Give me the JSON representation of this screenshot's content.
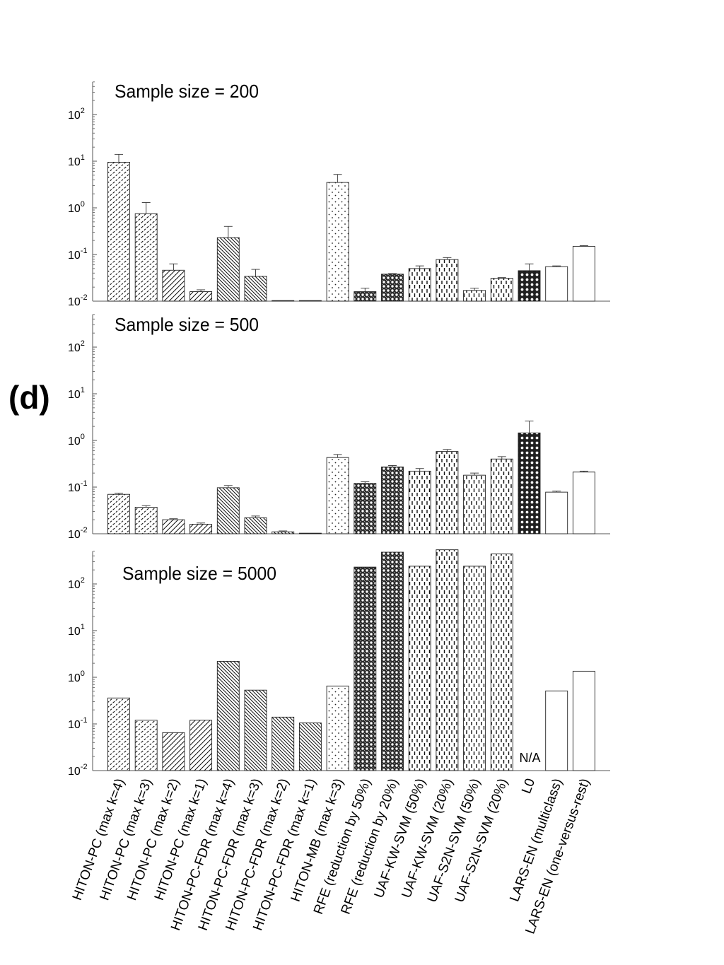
{
  "figure_label": "(d)",
  "colors": {
    "axis": "#555555",
    "bar_stroke": "#222222",
    "ink": "#000000"
  },
  "chart_data": [
    {
      "type": "bar",
      "scale": "log",
      "title": "Sample size = 200",
      "ylim": [
        0.01,
        500
      ],
      "yticks": [
        0.01,
        0.1,
        1,
        10,
        100
      ],
      "categories": [
        "HITON-PC (max k=4)",
        "HITON-PC (max k=3)",
        "HITON-PC (max k=2)",
        "HITON-PC (max k=1)",
        "HITON-PC-FDR (max k=4)",
        "HITON-PC-FDR (max k=3)",
        "HITON-PC-FDR (max k=2)",
        "HITON-PC-FDR (max k=1)",
        "HITON-MB (max k=3)",
        "RFE (reduction by 50%)",
        "RFE (reduction by 20%)",
        "UAF-KW-SVM (50%)",
        "UAF-KW-SVM (20%)",
        "UAF-S2N-SVM (50%)",
        "UAF-S2N-SVM (20%)",
        "L0",
        "LARS-EN (multiclass)",
        "LARS-EN (one-versus-rest)"
      ],
      "values": [
        9.5,
        0.75,
        0.046,
        0.016,
        0.23,
        0.034,
        0.0103,
        0.0103,
        3.5,
        0.016,
        0.038,
        0.05,
        0.078,
        0.017,
        0.031,
        0.045,
        0.055,
        0.15
      ],
      "errors": [
        14,
        1.3,
        0.063,
        0.0175,
        0.4,
        0.048,
        null,
        null,
        5.2,
        0.019,
        0.039,
        0.057,
        0.086,
        0.019,
        0.032,
        0.063,
        0.057,
        0.155
      ]
    },
    {
      "type": "bar",
      "scale": "log",
      "title": "Sample size = 500",
      "ylim": [
        0.01,
        500
      ],
      "yticks": [
        0.01,
        0.1,
        1,
        10,
        100
      ],
      "categories": [
        "HITON-PC (max k=4)",
        "HITON-PC (max k=3)",
        "HITON-PC (max k=2)",
        "HITON-PC (max k=1)",
        "HITON-PC-FDR (max k=4)",
        "HITON-PC-FDR (max k=3)",
        "HITON-PC-FDR (max k=2)",
        "HITON-PC-FDR (max k=1)",
        "HITON-MB (max k=3)",
        "RFE (reduction by 50%)",
        "RFE (reduction by 20%)",
        "UAF-KW-SVM (50%)",
        "UAF-KW-SVM (20%)",
        "UAF-S2N-SVM (50%)",
        "UAF-S2N-SVM (20%)",
        "L0",
        "LARS-EN (multiclass)",
        "LARS-EN (one-versus-rest)"
      ],
      "values": [
        0.07,
        0.037,
        0.02,
        0.016,
        0.097,
        0.022,
        0.011,
        0.0103,
        0.43,
        0.12,
        0.27,
        0.22,
        0.58,
        0.18,
        0.4,
        1.45,
        0.078,
        0.21
      ],
      "errors": [
        0.074,
        0.04,
        0.021,
        0.017,
        0.108,
        0.024,
        0.0115,
        null,
        0.5,
        0.13,
        0.29,
        0.25,
        0.64,
        0.2,
        0.45,
        2.6,
        0.082,
        0.22
      ]
    },
    {
      "type": "bar",
      "scale": "log",
      "title": "Sample size = 5000",
      "ylim": [
        0.01,
        500
      ],
      "yticks": [
        0.01,
        0.1,
        1,
        10,
        100
      ],
      "categories": [
        "HITON-PC (max k=4)",
        "HITON-PC (max k=3)",
        "HITON-PC (max k=2)",
        "HITON-PC (max k=1)",
        "HITON-PC-FDR (max k=4)",
        "HITON-PC-FDR (max k=3)",
        "HITON-PC-FDR (max k=2)",
        "HITON-PC-FDR (max k=1)",
        "HITON-MB (max k=3)",
        "RFE (reduction by 50%)",
        "RFE (reduction by 20%)",
        "UAF-KW-SVM (50%)",
        "UAF-KW-SVM (20%)",
        "UAF-S2N-SVM (50%)",
        "UAF-S2N-SVM (20%)",
        "L0",
        "LARS-EN (multiclass)",
        "LARS-EN (one-versus-rest)"
      ],
      "values": [
        0.36,
        0.12,
        0.065,
        0.12,
        2.2,
        0.53,
        0.14,
        0.105,
        0.65,
        230,
        480,
        240,
        540,
        240,
        440,
        null,
        0.51,
        1.35
      ],
      "errors": [
        null,
        null,
        null,
        null,
        null,
        null,
        null,
        null,
        null,
        null,
        null,
        null,
        null,
        null,
        null,
        null,
        null,
        null
      ],
      "annotations": [
        {
          "category": "L0",
          "text": "N/A"
        }
      ]
    }
  ]
}
